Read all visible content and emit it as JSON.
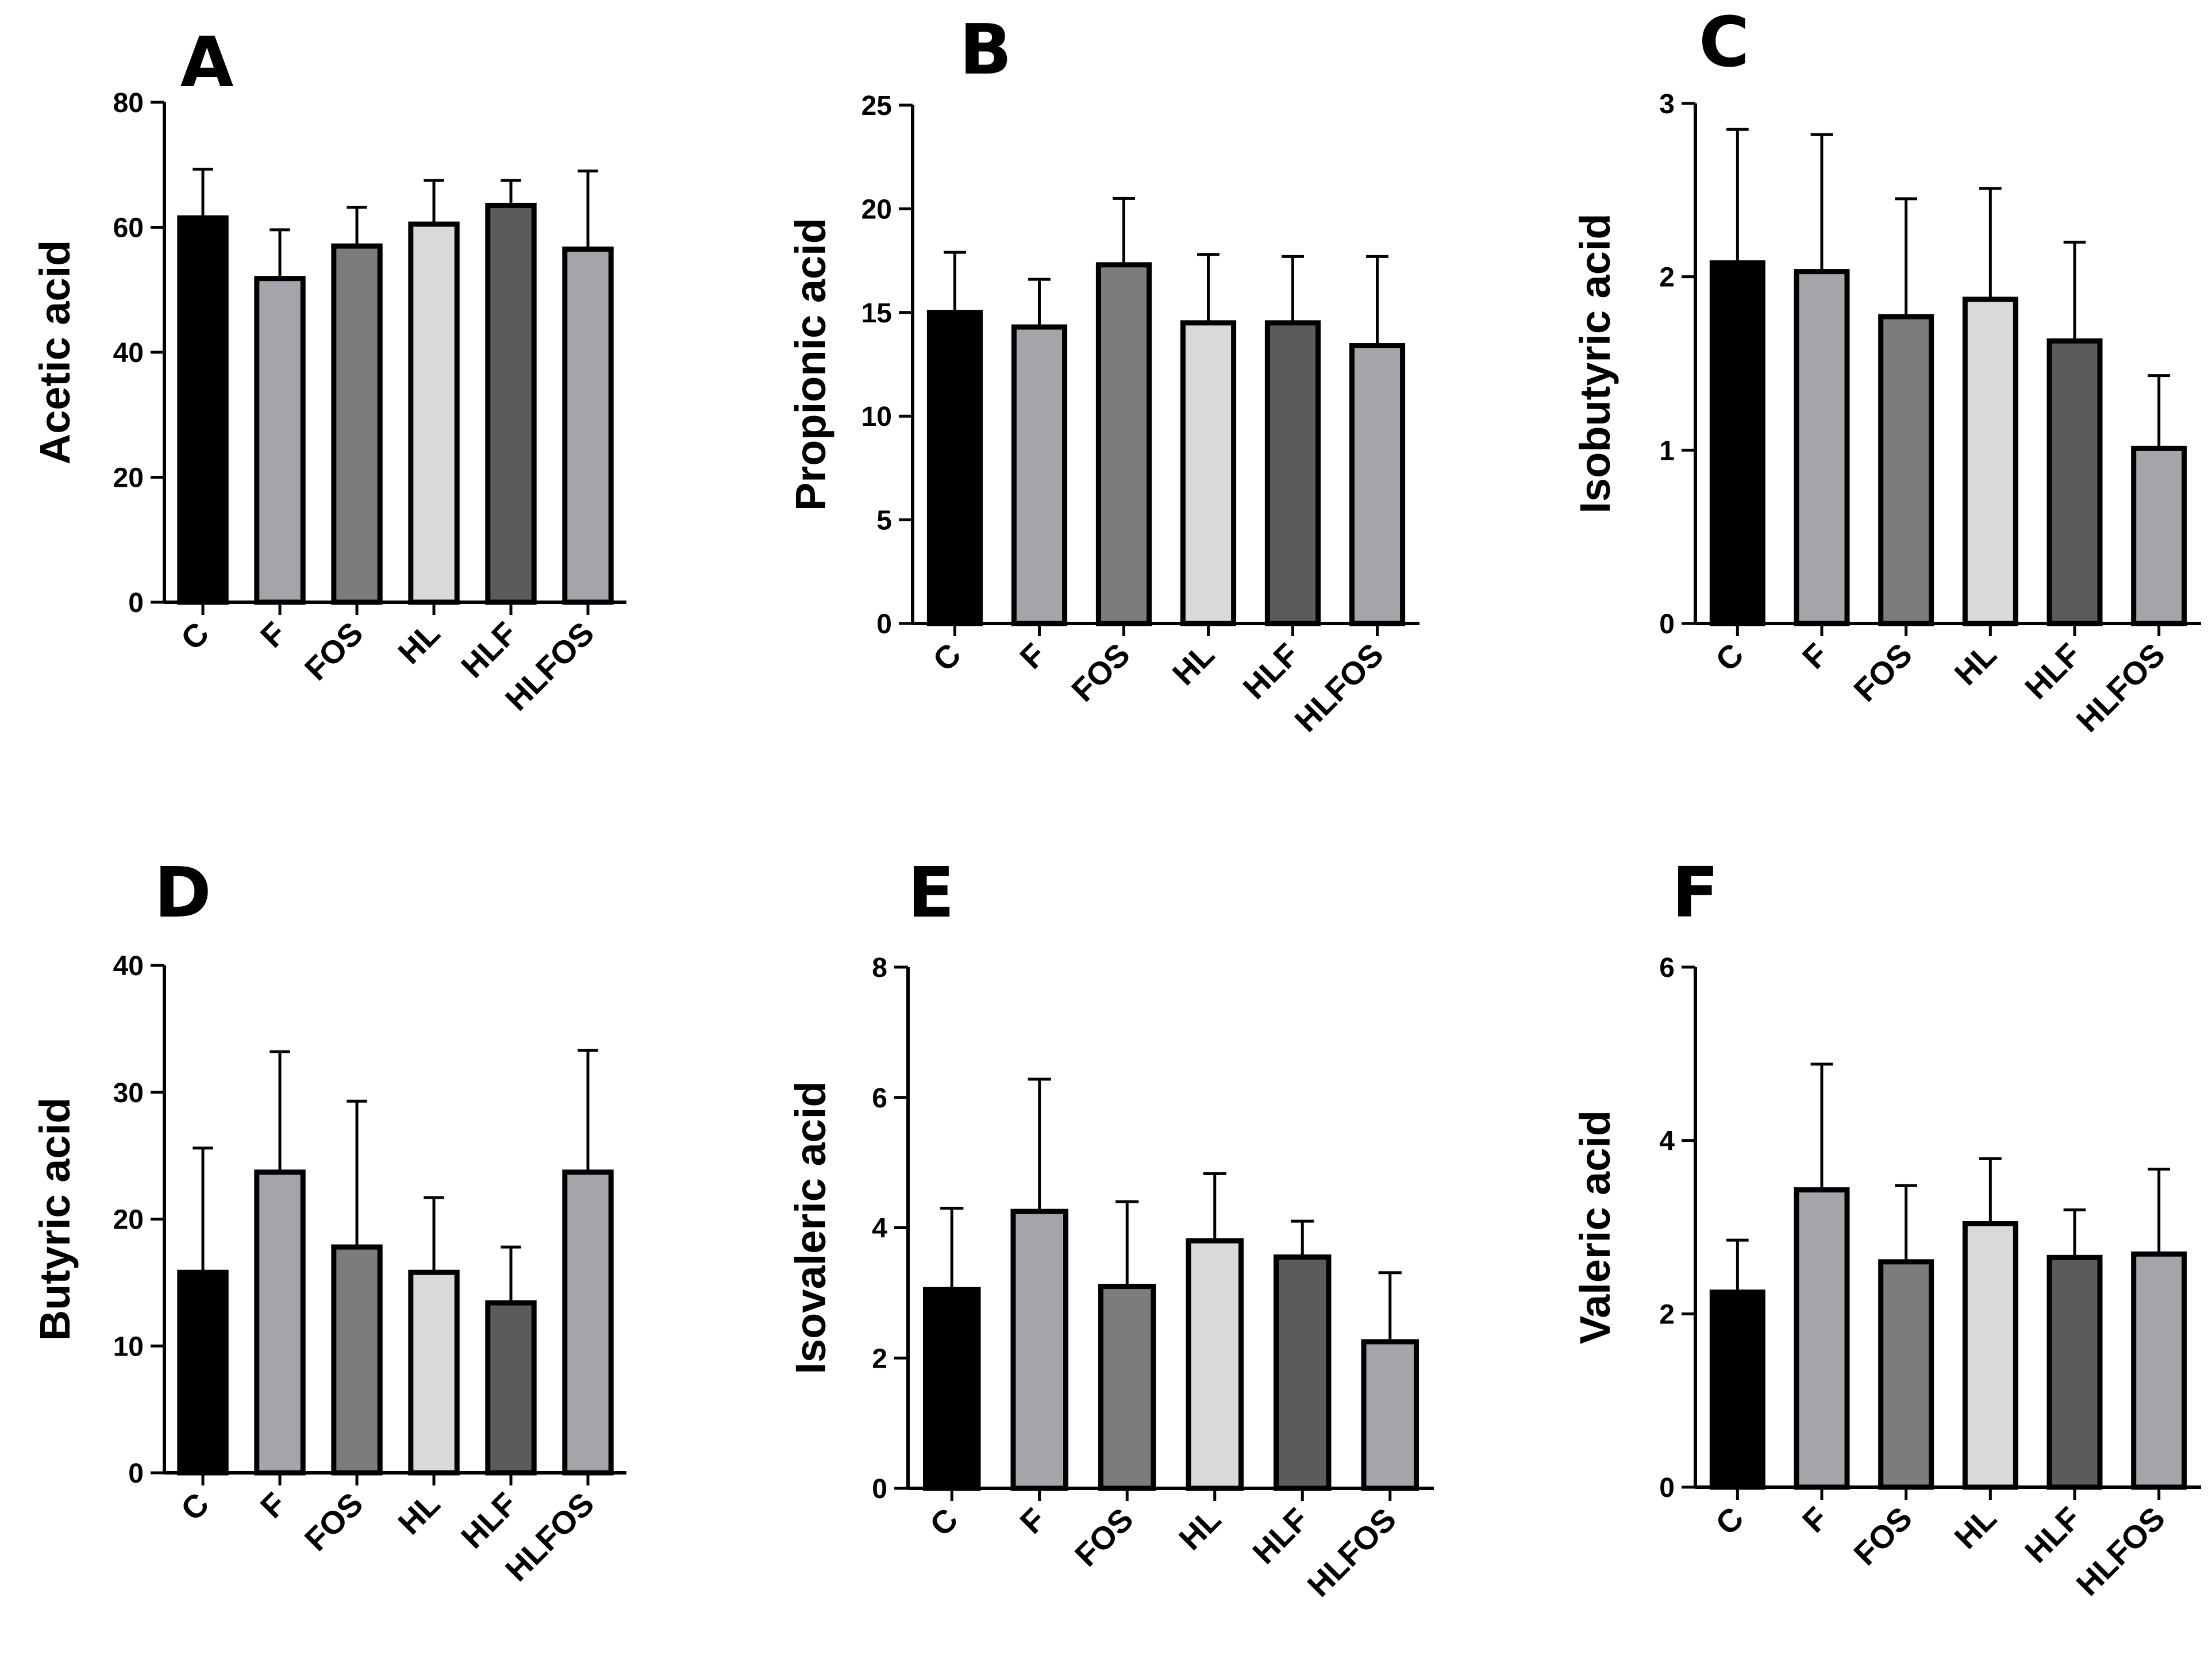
{
  "colors": {
    "C": "#000000",
    "F": "#a5a4aa",
    "FOS": "#7c7c7c",
    "HL": "#d9d9d9",
    "HLF": "#5b5b5b",
    "HLFOS": "#a5a4aa",
    "outline": "#000000"
  },
  "chart_data": [
    {
      "type": "bar",
      "panel": "A",
      "ylabel": "Acetic acid",
      "categories": [
        "C",
        "F",
        "FOS",
        "HL",
        "HLF",
        "HLFOS"
      ],
      "values": [
        61.5,
        51.8,
        57,
        60.5,
        63.5,
        56.5
      ],
      "errors": [
        7.8,
        7.8,
        6.2,
        7,
        4,
        12.5
      ],
      "ylim": [
        0,
        80
      ],
      "yticks": [
        0,
        20,
        40,
        60,
        80
      ],
      "ytick_labels": [
        "0",
        "20",
        "40",
        "60",
        "80"
      ]
    },
    {
      "type": "bar",
      "panel": "B",
      "ylabel": "Propionic acid",
      "categories": [
        "C",
        "F",
        "FOS",
        "HL",
        "HLF",
        "HLFOS"
      ],
      "values": [
        15,
        14.3,
        17.3,
        14.5,
        14.5,
        13.4
      ],
      "errors": [
        2.9,
        2.3,
        3.2,
        3.3,
        3.2,
        4.3
      ],
      "ylim": [
        0,
        25
      ],
      "yticks": [
        0,
        5,
        10,
        15,
        20,
        25
      ],
      "ytick_labels": [
        "0",
        "5",
        "10",
        "15",
        "20",
        "25"
      ]
    },
    {
      "type": "bar",
      "panel": "C",
      "ylabel": "Isobutyric acid",
      "categories": [
        "C",
        "F",
        "FOS",
        "HL",
        "HLF",
        "HLFOS"
      ],
      "values": [
        2.08,
        2.03,
        1.77,
        1.87,
        1.63,
        1.01
      ],
      "errors": [
        0.77,
        0.79,
        0.68,
        0.64,
        0.57,
        0.42
      ],
      "ylim": [
        0,
        3
      ],
      "yticks": [
        0,
        1,
        2,
        3
      ],
      "ytick_labels": [
        "0",
        "1",
        "2",
        "3"
      ]
    },
    {
      "type": "bar",
      "panel": "D",
      "ylabel": "Butyric acid",
      "categories": [
        "C",
        "F",
        "FOS",
        "HL",
        "HLF",
        "HLFOS"
      ],
      "values": [
        15.8,
        23.7,
        17.8,
        15.8,
        13.4,
        23.7
      ],
      "errors": [
        9.8,
        9.5,
        11.5,
        5.9,
        4.4,
        9.6
      ],
      "ylim": [
        0,
        40
      ],
      "yticks": [
        0,
        10,
        20,
        30,
        40
      ],
      "ytick_labels": [
        "0",
        "10",
        "20",
        "30",
        "40"
      ]
    },
    {
      "type": "bar",
      "panel": "E",
      "ylabel": "Isovaleric acid",
      "categories": [
        "C",
        "F",
        "FOS",
        "HL",
        "HLF",
        "HLFOS"
      ],
      "values": [
        3.05,
        4.25,
        3.1,
        3.8,
        3.55,
        2.25
      ],
      "errors": [
        1.25,
        2.03,
        1.3,
        1.03,
        0.55,
        1.06
      ],
      "ylim": [
        0,
        8
      ],
      "yticks": [
        0,
        2,
        4,
        6,
        8
      ],
      "ytick_labels": [
        "0",
        "2",
        "4",
        "6",
        "8"
      ]
    },
    {
      "type": "bar",
      "panel": "F",
      "ylabel": "Valeric acid",
      "categories": [
        "C",
        "F",
        "FOS",
        "HL",
        "HLF",
        "HLFOS"
      ],
      "values": [
        2.25,
        3.43,
        2.6,
        3.04,
        2.65,
        2.69
      ],
      "errors": [
        0.6,
        1.45,
        0.88,
        0.75,
        0.55,
        0.98
      ],
      "ylim": [
        0,
        6
      ],
      "yticks": [
        0,
        2,
        4,
        6
      ],
      "ytick_labels": [
        "0",
        "2",
        "4",
        "6"
      ]
    }
  ]
}
